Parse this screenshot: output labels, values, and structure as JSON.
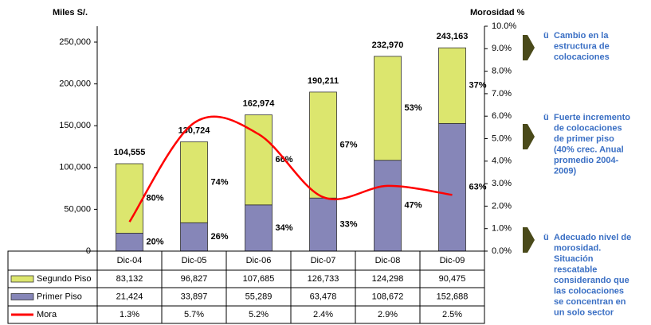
{
  "chart_data": {
    "type": "stacked_bar_line",
    "y_label": "Miles S/.",
    "y2_label": "Morosidad %",
    "categories": [
      "Dic-04",
      "Dic-05",
      "Dic-06",
      "Dic-07",
      "Dic-08",
      "Dic-09"
    ],
    "series": [
      {
        "name": "Primer Piso",
        "color": "#8686b8",
        "values": [
          21424,
          33897,
          55289,
          63478,
          108672,
          152688
        ],
        "value_labels": [
          "21,424",
          "33,897",
          "55,289",
          "63,478",
          "108,672",
          "152,688"
        ],
        "share_labels": [
          "20%",
          "26%",
          "34%",
          "33%",
          "47%",
          "63%"
        ]
      },
      {
        "name": "Segundo Piso",
        "color": "#dce66e",
        "values": [
          83132,
          96827,
          107685,
          126733,
          124298,
          90475
        ],
        "value_labels": [
          "83,132",
          "96,827",
          "107,685",
          "126,733",
          "124,298",
          "90,475"
        ],
        "share_labels": [
          "80%",
          "74%",
          "66%",
          "67%",
          "53%",
          "37%"
        ]
      },
      {
        "name": "Mora",
        "color": "#ff0000",
        "axis": "y2",
        "values": [
          1.3,
          5.7,
          5.2,
          2.4,
          2.9,
          2.5
        ],
        "value_labels": [
          "1.3%",
          "5.7%",
          "5.2%",
          "2.4%",
          "2.9%",
          "2.5%"
        ]
      }
    ],
    "total_labels": [
      "104,555",
      "130,724",
      "162,974",
      "190,211",
      "232,970",
      "243,163"
    ],
    "ylim": [
      0,
      269000
    ],
    "yticks": [
      0,
      {
        "value": 50000,
        "label": "50,000"
      },
      {
        "value": 100000,
        "label": "100,000"
      },
      {
        "value": 150000,
        "label": "150,000"
      },
      {
        "value": 200000,
        "label": "200,000"
      },
      {
        "value": 250000,
        "label": "250,000"
      }
    ],
    "y2lim": [
      0,
      10
    ],
    "y2ticks": [
      {
        "value": 0,
        "label": "0.0%"
      },
      {
        "value": 1,
        "label": "1.0%"
      },
      {
        "value": 2,
        "label": "2.0%"
      },
      {
        "value": 3,
        "label": "3.0%"
      },
      {
        "value": 4,
        "label": "4.0%"
      },
      {
        "value": 5,
        "label": "5.0%"
      },
      {
        "value": 6,
        "label": "6.0%"
      },
      {
        "value": 7,
        "label": "7.0%"
      },
      {
        "value": 8,
        "label": "8.0%"
      },
      {
        "value": 9,
        "label": "9.0%"
      },
      {
        "value": 10,
        "label": "10.0%"
      }
    ],
    "notes_bullet": "ü",
    "notes": [
      [
        "Cambio en la",
        "estructura de",
        "colocaciones"
      ],
      [
        "Fuerte incremento",
        "de colocaciones",
        "de primer piso",
        "(40% crec. Anual",
        "promedio 2004-",
        "2009)"
      ],
      [
        "Adecuado nivel de",
        "morosidad.",
        "Situación",
        "rescatable",
        "considerando que",
        "las colocaciones",
        "se concentran en",
        "un solo sector"
      ]
    ]
  }
}
